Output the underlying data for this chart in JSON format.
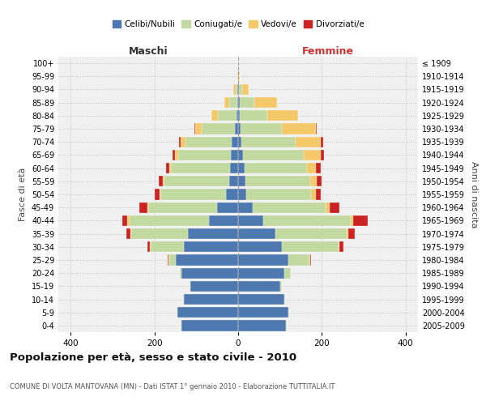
{
  "age_groups": [
    "0-4",
    "5-9",
    "10-14",
    "15-19",
    "20-24",
    "25-29",
    "30-34",
    "35-39",
    "40-44",
    "45-49",
    "50-54",
    "55-59",
    "60-64",
    "65-69",
    "70-74",
    "75-79",
    "80-84",
    "85-89",
    "90-94",
    "95-99",
    "100+"
  ],
  "birth_years": [
    "2005-2009",
    "2000-2004",
    "1995-1999",
    "1990-1994",
    "1985-1989",
    "1980-1984",
    "1975-1979",
    "1970-1974",
    "1965-1969",
    "1960-1964",
    "1955-1959",
    "1950-1954",
    "1945-1949",
    "1940-1944",
    "1935-1939",
    "1930-1934",
    "1925-1929",
    "1920-1924",
    "1915-1919",
    "1910-1914",
    "≤ 1909"
  ],
  "colors": {
    "celibi": "#4e78b0",
    "coniugati": "#c2d9a0",
    "vedovi": "#f5c96a",
    "divorziati": "#cc2222",
    "background": "#ffffff",
    "plot_bg": "#f0f0f0"
  },
  "maschi": {
    "celibi": [
      135,
      145,
      130,
      115,
      135,
      150,
      130,
      120,
      70,
      50,
      30,
      22,
      20,
      18,
      15,
      8,
      4,
      2,
      1,
      0,
      0
    ],
    "coniugati": [
      2,
      3,
      2,
      2,
      5,
      15,
      80,
      135,
      190,
      165,
      155,
      155,
      140,
      125,
      110,
      80,
      45,
      20,
      5,
      0,
      0
    ],
    "vedovi": [
      0,
      0,
      0,
      0,
      0,
      2,
      2,
      3,
      5,
      2,
      2,
      3,
      5,
      8,
      12,
      15,
      15,
      10,
      5,
      1,
      0
    ],
    "divorziati": [
      0,
      0,
      0,
      0,
      0,
      2,
      5,
      10,
      12,
      20,
      12,
      10,
      8,
      5,
      5,
      2,
      0,
      0,
      0,
      0,
      0
    ]
  },
  "femmine": {
    "nubili": [
      115,
      120,
      110,
      100,
      110,
      120,
      105,
      90,
      60,
      35,
      20,
      18,
      15,
      12,
      8,
      5,
      4,
      3,
      2,
      0,
      0
    ],
    "coniugate": [
      2,
      2,
      3,
      5,
      15,
      50,
      135,
      170,
      210,
      175,
      155,
      155,
      150,
      145,
      130,
      100,
      65,
      35,
      8,
      2,
      0
    ],
    "vedove": [
      0,
      0,
      0,
      0,
      0,
      2,
      2,
      3,
      5,
      8,
      10,
      15,
      20,
      40,
      60,
      80,
      75,
      55,
      15,
      2,
      0
    ],
    "divorziate": [
      0,
      0,
      0,
      0,
      0,
      2,
      10,
      15,
      35,
      25,
      12,
      12,
      12,
      8,
      5,
      2,
      0,
      0,
      0,
      0,
      0
    ]
  },
  "xlim": 430,
  "title": "Popolazione per età, sesso e stato civile - 2010",
  "subtitle": "COMUNE DI VOLTA MANTOVANA (MN) - Dati ISTAT 1° gennaio 2010 - Elaborazione TUTTITALIA.IT",
  "ylabel_left": "Fasce di età",
  "ylabel_right": "Anni di nascita",
  "xlabel_left": "Maschi",
  "xlabel_right": "Femmine"
}
